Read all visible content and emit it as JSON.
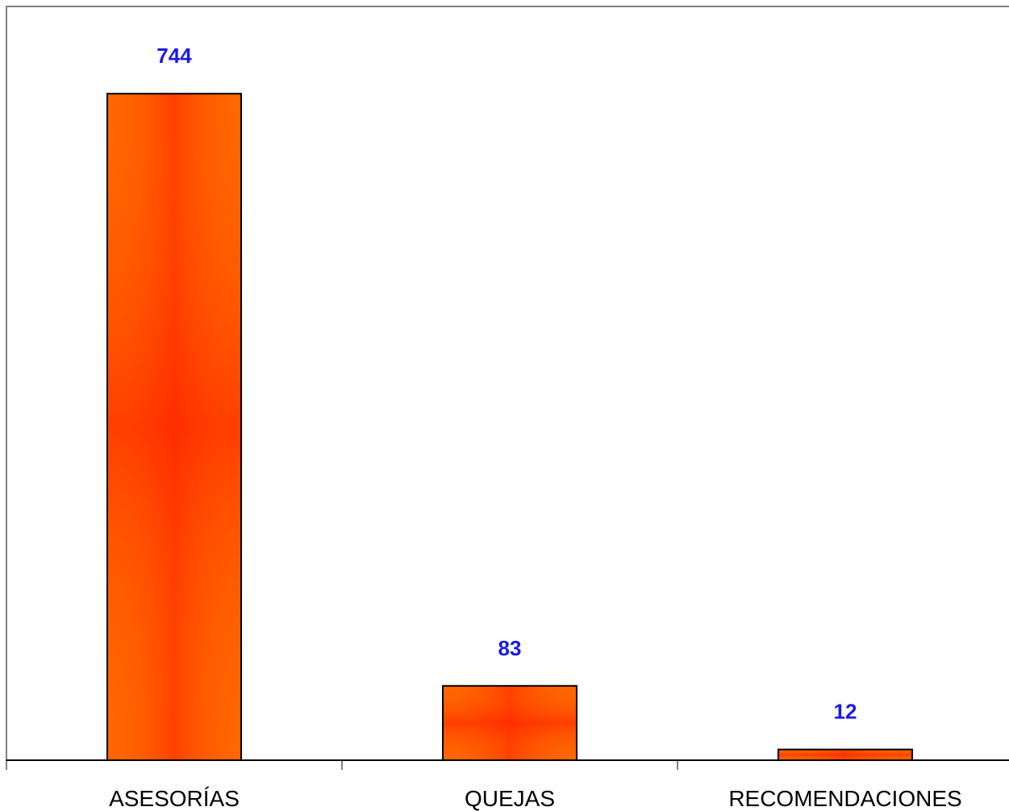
{
  "chart_data": {
    "type": "bar",
    "title": "",
    "xlabel": "",
    "ylabel": "",
    "categories": [
      "ASESORÍAS",
      "QUEJAS",
      "RECOMENDACIONES"
    ],
    "values": [
      744,
      83,
      12
    ],
    "data_labels": [
      "744",
      "83",
      "12"
    ],
    "ylim": [
      0,
      800
    ],
    "grid": false,
    "legend": "none",
    "colors": {
      "bar_edge": "#ff6600",
      "bar_center": "#ff1a00",
      "bar_outline": "#000000",
      "data_label": "#1a1ae6",
      "frame": "#808080",
      "axis": "#000000"
    }
  }
}
